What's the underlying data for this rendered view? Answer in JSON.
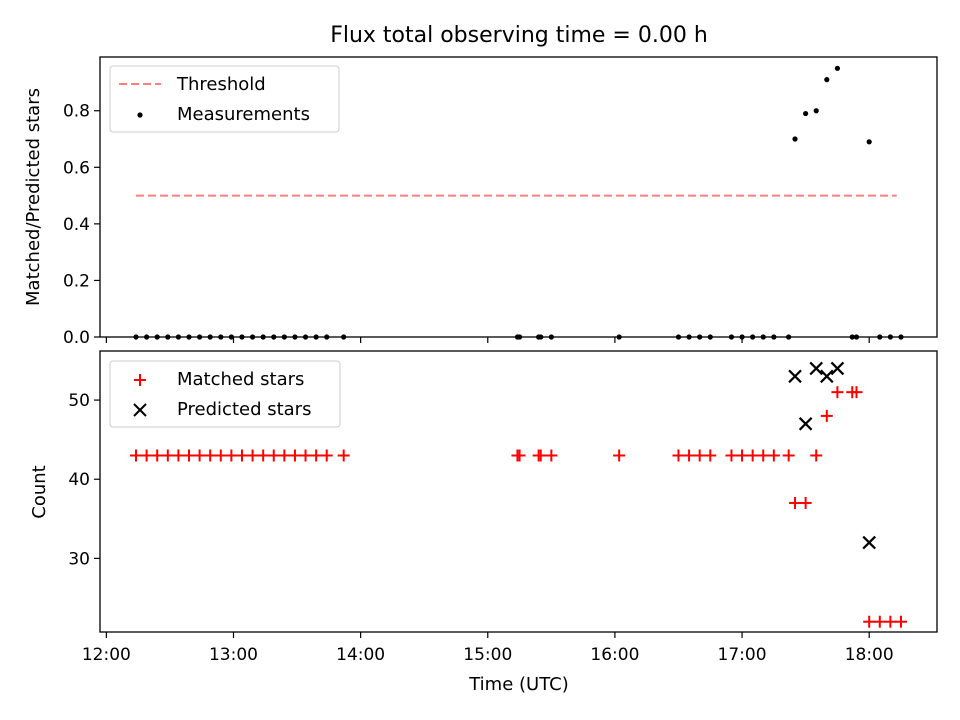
{
  "chart_data": [
    {
      "type": "scatter",
      "title": "Flux total observing time = 0.00 h",
      "xlabel": "",
      "ylabel": "Matched/Predicted stars",
      "xlim": [
        "11:57",
        "18:32"
      ],
      "ylim": [
        0,
        0.99
      ],
      "grid": false,
      "legend_position": "top-left",
      "x_ticks": [
        "12:00",
        "13:00",
        "14:00",
        "15:00",
        "16:00",
        "17:00",
        "18:00"
      ],
      "y_ticks": [
        0.0,
        0.2,
        0.4,
        0.6,
        0.8
      ],
      "y_tick_labels": [
        "0.0",
        "0.2",
        "0.4",
        "0.6",
        "0.8"
      ],
      "threshold": {
        "name": "Threshold",
        "value": 0.5,
        "x_range": [
          "12:14",
          "18:13"
        ],
        "color": "#ff7f7f",
        "style": "dashed"
      },
      "series": [
        {
          "name": "Measurements",
          "color": "#000000",
          "marker": "dot",
          "points": [
            {
              "x": "12:14",
              "y": 0
            },
            {
              "x": "12:19",
              "y": 0
            },
            {
              "x": "12:24",
              "y": 0
            },
            {
              "x": "12:29",
              "y": 0
            },
            {
              "x": "12:34",
              "y": 0
            },
            {
              "x": "12:39",
              "y": 0
            },
            {
              "x": "12:44",
              "y": 0
            },
            {
              "x": "12:49",
              "y": 0
            },
            {
              "x": "12:54",
              "y": 0
            },
            {
              "x": "12:59",
              "y": 0
            },
            {
              "x": "13:04",
              "y": 0
            },
            {
              "x": "13:09",
              "y": 0
            },
            {
              "x": "13:14",
              "y": 0
            },
            {
              "x": "13:19",
              "y": 0
            },
            {
              "x": "13:24",
              "y": 0
            },
            {
              "x": "13:29",
              "y": 0
            },
            {
              "x": "13:34",
              "y": 0
            },
            {
              "x": "13:39",
              "y": 0
            },
            {
              "x": "13:44",
              "y": 0
            },
            {
              "x": "13:52",
              "y": 0
            },
            {
              "x": "15:14",
              "y": 0
            },
            {
              "x": "15:15",
              "y": 0
            },
            {
              "x": "15:24",
              "y": 0
            },
            {
              "x": "15:25",
              "y": 0
            },
            {
              "x": "15:30",
              "y": 0
            },
            {
              "x": "16:02",
              "y": 0
            },
            {
              "x": "16:30",
              "y": 0
            },
            {
              "x": "16:35",
              "y": 0
            },
            {
              "x": "16:40",
              "y": 0
            },
            {
              "x": "16:45",
              "y": 0
            },
            {
              "x": "16:55",
              "y": 0
            },
            {
              "x": "17:00",
              "y": 0
            },
            {
              "x": "17:05",
              "y": 0
            },
            {
              "x": "17:10",
              "y": 0
            },
            {
              "x": "17:15",
              "y": 0
            },
            {
              "x": "17:22",
              "y": 0
            },
            {
              "x": "17:25",
              "y": 0.7
            },
            {
              "x": "17:30",
              "y": 0.79
            },
            {
              "x": "17:35",
              "y": 0.8
            },
            {
              "x": "17:40",
              "y": 0.91
            },
            {
              "x": "17:45",
              "y": 0.95
            },
            {
              "x": "17:52",
              "y": 0
            },
            {
              "x": "17:54",
              "y": 0
            },
            {
              "x": "18:00",
              "y": 0.69
            },
            {
              "x": "18:05",
              "y": 0
            },
            {
              "x": "18:10",
              "y": 0
            },
            {
              "x": "18:15",
              "y": 0
            }
          ]
        }
      ]
    },
    {
      "type": "scatter",
      "title": "",
      "xlabel": "Time (UTC)",
      "ylabel": "Count",
      "xlim": [
        "11:57",
        "18:32"
      ],
      "ylim": [
        20.7,
        56.2
      ],
      "grid": false,
      "legend_position": "top-left",
      "x_ticks": [
        "12:00",
        "13:00",
        "14:00",
        "15:00",
        "16:00",
        "17:00",
        "18:00"
      ],
      "y_ticks": [
        30,
        40,
        50
      ],
      "y_tick_labels": [
        "30",
        "40",
        "50"
      ],
      "series": [
        {
          "name": "Matched stars",
          "color": "#ff0000",
          "marker": "plus",
          "points": [
            {
              "x": "12:14",
              "y": 43
            },
            {
              "x": "12:19",
              "y": 43
            },
            {
              "x": "12:24",
              "y": 43
            },
            {
              "x": "12:29",
              "y": 43
            },
            {
              "x": "12:34",
              "y": 43
            },
            {
              "x": "12:39",
              "y": 43
            },
            {
              "x": "12:44",
              "y": 43
            },
            {
              "x": "12:49",
              "y": 43
            },
            {
              "x": "12:54",
              "y": 43
            },
            {
              "x": "12:59",
              "y": 43
            },
            {
              "x": "13:04",
              "y": 43
            },
            {
              "x": "13:09",
              "y": 43
            },
            {
              "x": "13:14",
              "y": 43
            },
            {
              "x": "13:19",
              "y": 43
            },
            {
              "x": "13:24",
              "y": 43
            },
            {
              "x": "13:29",
              "y": 43
            },
            {
              "x": "13:34",
              "y": 43
            },
            {
              "x": "13:39",
              "y": 43
            },
            {
              "x": "13:44",
              "y": 43
            },
            {
              "x": "13:52",
              "y": 43
            },
            {
              "x": "15:14",
              "y": 43
            },
            {
              "x": "15:15",
              "y": 43
            },
            {
              "x": "15:24",
              "y": 43
            },
            {
              "x": "15:25",
              "y": 43
            },
            {
              "x": "15:30",
              "y": 43
            },
            {
              "x": "16:02",
              "y": 43
            },
            {
              "x": "16:30",
              "y": 43
            },
            {
              "x": "16:35",
              "y": 43
            },
            {
              "x": "16:40",
              "y": 43
            },
            {
              "x": "16:45",
              "y": 43
            },
            {
              "x": "16:55",
              "y": 43
            },
            {
              "x": "17:00",
              "y": 43
            },
            {
              "x": "17:05",
              "y": 43
            },
            {
              "x": "17:10",
              "y": 43
            },
            {
              "x": "17:15",
              "y": 43
            },
            {
              "x": "17:22",
              "y": 43
            },
            {
              "x": "17:25",
              "y": 37
            },
            {
              "x": "17:30",
              "y": 37
            },
            {
              "x": "17:35",
              "y": 43
            },
            {
              "x": "17:40",
              "y": 48
            },
            {
              "x": "17:45",
              "y": 51
            },
            {
              "x": "17:52",
              "y": 51
            },
            {
              "x": "17:54",
              "y": 51
            },
            {
              "x": "18:00",
              "y": 22
            },
            {
              "x": "18:05",
              "y": 22
            },
            {
              "x": "18:10",
              "y": 22
            },
            {
              "x": "18:15",
              "y": 22
            }
          ]
        },
        {
          "name": "Predicted stars",
          "color": "#000000",
          "marker": "x",
          "points": [
            {
              "x": "17:25",
              "y": 53
            },
            {
              "x": "17:30",
              "y": 47
            },
            {
              "x": "17:35",
              "y": 54
            },
            {
              "x": "17:40",
              "y": 53
            },
            {
              "x": "17:45",
              "y": 54
            },
            {
              "x": "18:00",
              "y": 32
            }
          ]
        }
      ]
    }
  ]
}
